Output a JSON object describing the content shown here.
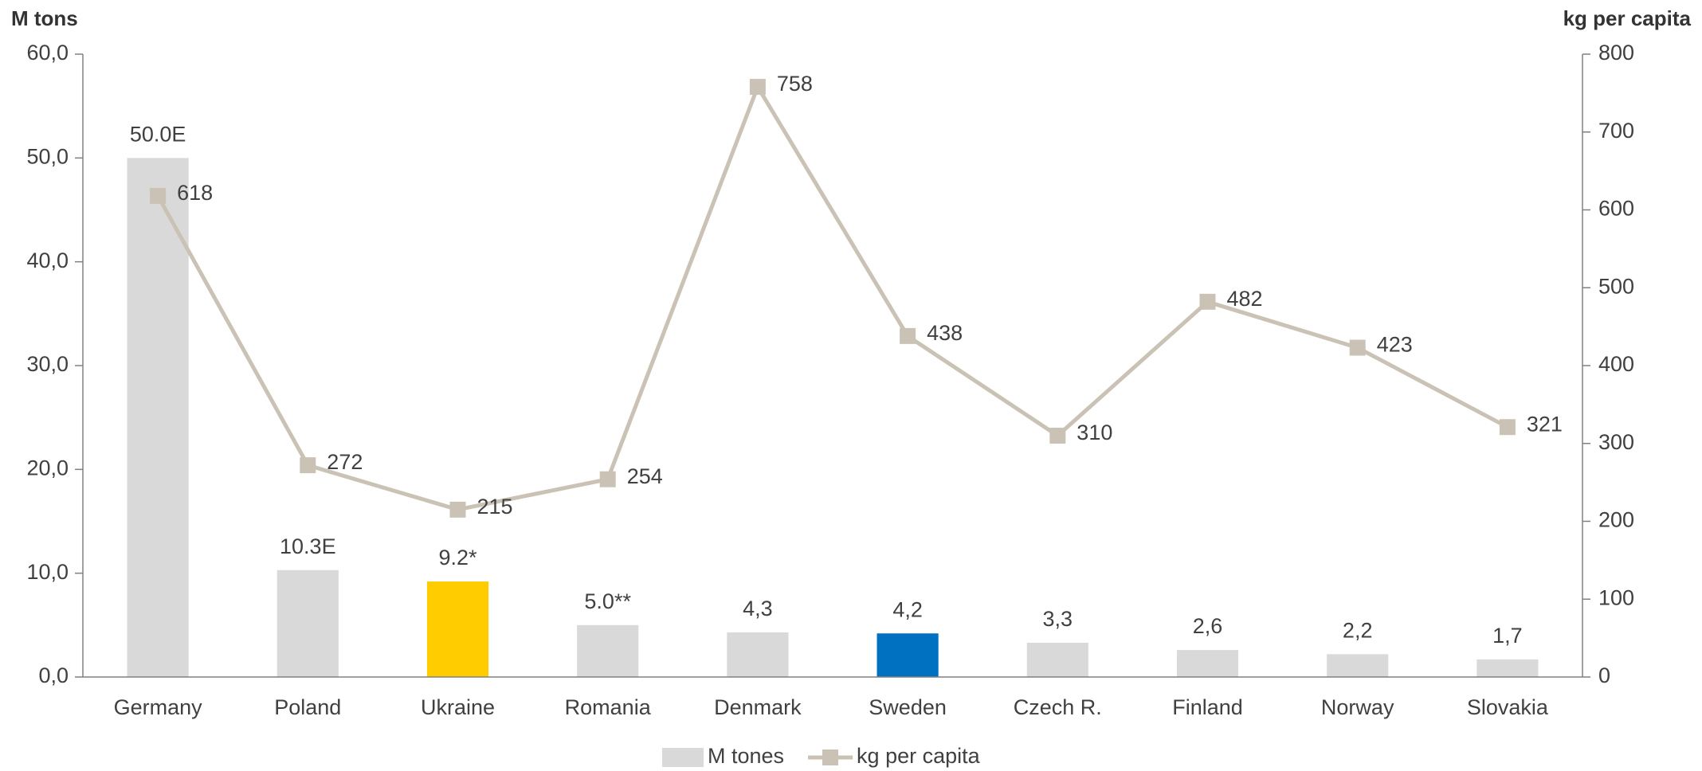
{
  "chart_data": {
    "type": "bar_line",
    "y_axis_label": "M tons",
    "y2_axis_label": "kg per capita",
    "categories": [
      "Germany",
      "Poland",
      "Ukraine",
      "Romania",
      "Denmark",
      "Sweden",
      "Czech R.",
      "Finland",
      "Norway",
      "Slovakia"
    ],
    "series": [
      {
        "name": "M tones",
        "type": "bar",
        "color": "#d9d9d9",
        "colors": [
          "#d9d9d9",
          "#d9d9d9",
          "#ffcc00",
          "#d9d9d9",
          "#d9d9d9",
          "#0070c0",
          "#d9d9d9",
          "#d9d9d9",
          "#d9d9d9",
          "#d9d9d9"
        ],
        "values": [
          50.0,
          10.3,
          9.2,
          5.0,
          4.3,
          4.2,
          3.3,
          2.6,
          2.2,
          1.7
        ],
        "value_labels": [
          "50.0E",
          "10.3E",
          "9.2*",
          "5.0**",
          "4,3",
          "4,2",
          "3,3",
          "2,6",
          "2,2",
          "1,7"
        ]
      },
      {
        "name": "kg per capita",
        "type": "line",
        "axis": "y2",
        "color": "#cbc2b6",
        "values": [
          618,
          272,
          215,
          254,
          758,
          438,
          310,
          482,
          423,
          321
        ]
      }
    ],
    "ylim": [
      0,
      60
    ],
    "yticks": [
      {
        "value": 0,
        "label": "0,0"
      },
      {
        "value": 10,
        "label": "10,0"
      },
      {
        "value": 20,
        "label": "20,0"
      },
      {
        "value": 30,
        "label": "30,0"
      },
      {
        "value": 40,
        "label": "40,0"
      },
      {
        "value": 50,
        "label": "50,0"
      },
      {
        "value": 60,
        "label": "60,0"
      }
    ],
    "y2lim": [
      0,
      800
    ],
    "y2ticks": [
      0,
      100,
      200,
      300,
      400,
      500,
      600,
      700,
      800
    ],
    "legend": "bottom"
  }
}
